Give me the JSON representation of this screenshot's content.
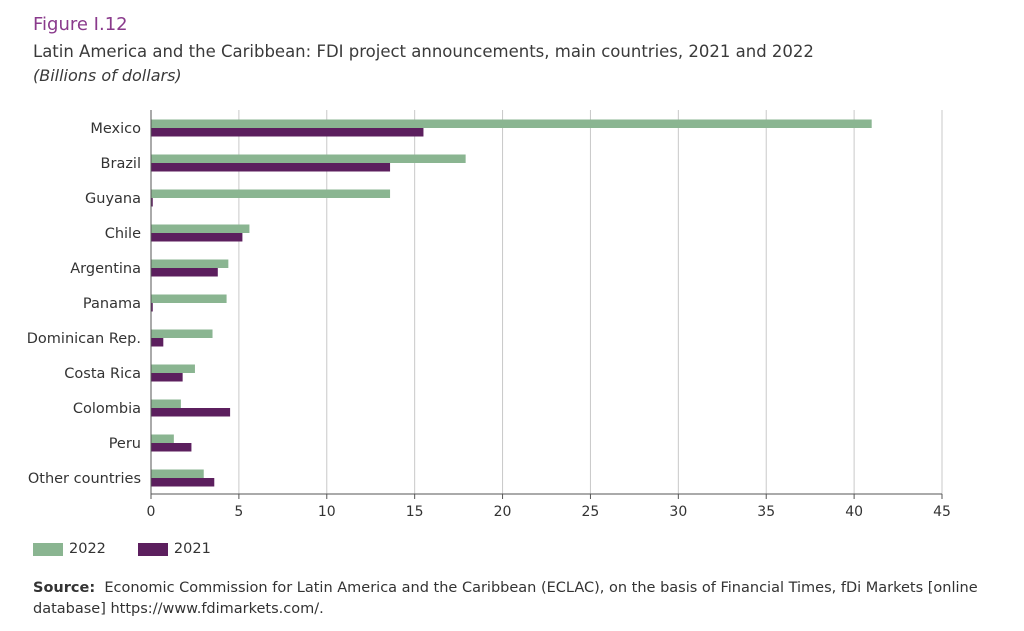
{
  "header": {
    "figure_label": "Figure I.12",
    "title": "Latin America and the Caribbean: FDI project announcements, main countries, 2021 and 2022",
    "subtitle": "(Billions of dollars)"
  },
  "colors": {
    "series_2022": "#8ab591",
    "series_2021": "#5c1f5e",
    "grid": "#c8c8c8",
    "axis": "#555555",
    "figure_label": "#8a3a8c"
  },
  "chart_data": {
    "type": "bar",
    "orientation": "horizontal",
    "categories": [
      "Mexico",
      "Brazil",
      "Guyana",
      "Chile",
      "Argentina",
      "Panama",
      "Dominican Rep.",
      "Costa Rica",
      "Colombia",
      "Peru",
      "Other countries"
    ],
    "series": [
      {
        "name": "2022",
        "values": [
          41.0,
          17.9,
          13.6,
          5.6,
          4.4,
          4.3,
          3.5,
          2.5,
          1.7,
          1.3,
          3.0
        ]
      },
      {
        "name": "2021",
        "values": [
          15.5,
          13.6,
          0.1,
          5.2,
          3.8,
          0.1,
          0.7,
          1.8,
          4.5,
          2.3,
          3.6
        ]
      }
    ],
    "xlim": [
      0,
      45
    ],
    "xticks": [
      "0",
      "5",
      "10",
      "15",
      "20",
      "25",
      "30",
      "35",
      "40",
      "45"
    ],
    "grid": true,
    "legend": "bottom-left"
  },
  "source": {
    "label": "Source",
    "separator": ":",
    "text": "Economic Commission for Latin America and the Caribbean (ECLAC), on the basis of Financial Times, fDi Markets [online database] https://www.fdimarkets.com/."
  }
}
